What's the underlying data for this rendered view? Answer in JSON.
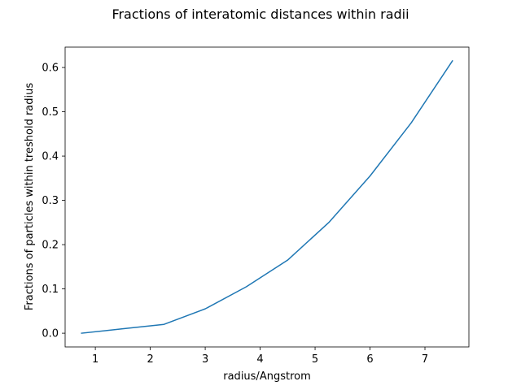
{
  "chart_data": {
    "type": "line",
    "title": "Fractions of interatomic distances within radii",
    "xlabel": "radius/Angstrom",
    "ylabel": "Fractions of particles within treshold radius",
    "xlim": [
      0.45,
      7.8
    ],
    "ylim": [
      -0.031,
      0.646
    ],
    "xticks": [
      1,
      2,
      3,
      4,
      5,
      6,
      7
    ],
    "yticks": [
      0.0,
      0.1,
      0.2,
      0.3,
      0.4,
      0.5,
      0.6
    ],
    "ytick_labels": [
      "0.0",
      "0.1",
      "0.2",
      "0.3",
      "0.4",
      "0.5",
      "0.6"
    ],
    "grid": false,
    "series": [
      {
        "color": "#1f77b4",
        "x": [
          0.75,
          1.5,
          2.25,
          3.0,
          3.75,
          4.5,
          5.25,
          6.0,
          6.75,
          7.5
        ],
        "y": [
          0.0,
          0.01,
          0.02,
          0.055,
          0.105,
          0.165,
          0.25,
          0.355,
          0.475,
          0.615
        ]
      }
    ]
  }
}
